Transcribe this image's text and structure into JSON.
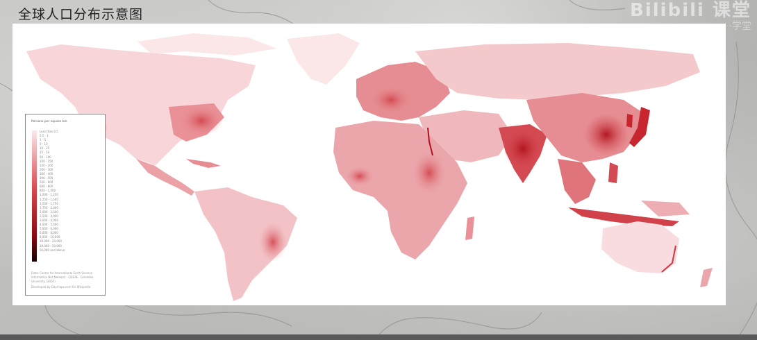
{
  "page": {
    "title": "全球人口分布示意图",
    "watermark_main": "Bilibili 课堂",
    "watermark_sub": "·学堂"
  },
  "legend": {
    "title": "Persons per square km",
    "classes": [
      "Less than 0.5",
      "0.5 - 1",
      "1 - 5",
      "5 - 10",
      "10 - 25",
      "25 - 50",
      "50 - 100",
      "100 - 150",
      "150 - 200",
      "200 - 300",
      "300 - 400",
      "400 - 500",
      "500 - 600",
      "600 - 800",
      "800 - 1,000",
      "1,000 - 1,250",
      "1,250 - 1,500",
      "1,500 - 1,750",
      "1,750 - 2,000",
      "2,000 - 2,500",
      "2,500 - 3,000",
      "3,000 - 4,000",
      "4,000 - 5,000",
      "5,000 - 6,000",
      "6,000 - 8,000",
      "8,000 - 10,000",
      "10,000 - 20,000",
      "20,000 - 50,000",
      "50,000 and above"
    ],
    "colors": {
      "low": "#fbe9ea",
      "mid": "#d9474f",
      "high": "#8b0a12",
      "max": "#140303"
    },
    "source": "Data: Center for International Earth Science Information Net Network - CIESIN - Columbia University (2005)",
    "credit": "Developed by Daymaps.com for Wikipedia"
  },
  "map": {
    "ocean_color": "#ffffff",
    "land_low_color": "#f6d6d8",
    "land_mid_color": "#e58d92",
    "land_high_color": "#c8262f"
  }
}
